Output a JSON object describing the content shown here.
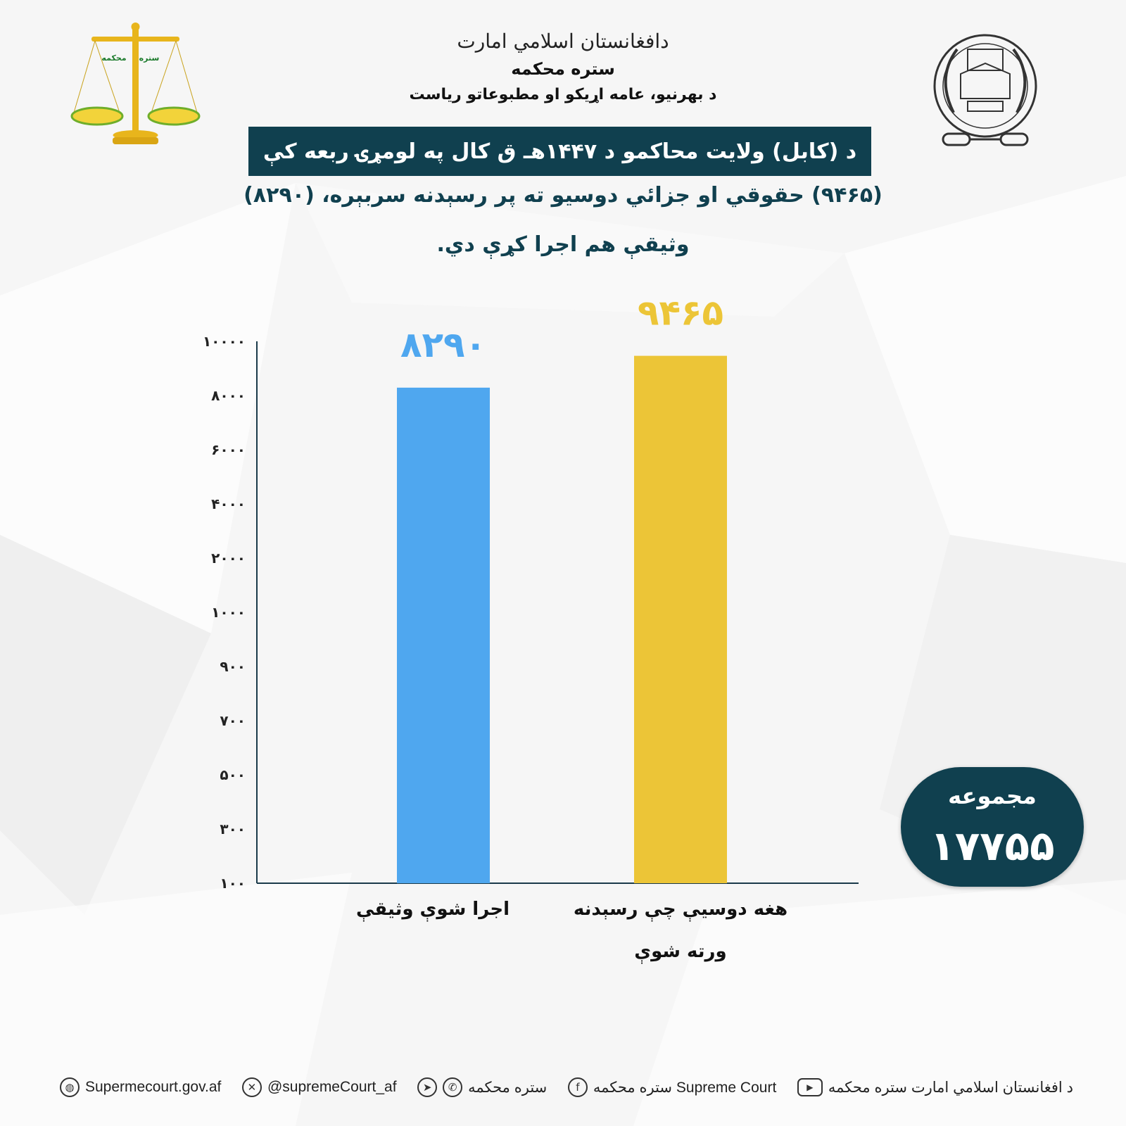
{
  "header": {
    "calligraphy": "دافغانستان اسلامي امارت",
    "court": "ستره محکمه",
    "department": "د بهرنیو، عامه اړیکو او مطبوعاتو ریاست"
  },
  "title": "د (کابل) ولایت محاکمو د ۱۴۴۷هـ ق کال په لومړۍ ربعه کې",
  "subtitle_line1": "(۹۴۶۵) حقوقي او جزائي دوسیو ته پر رسېدنه سربېره، (۸۲۹۰)",
  "subtitle_line2": "وثیقې هم اجرا کړې دي.",
  "logos": {
    "scale_label_left": "محکمه",
    "scale_label_right": "ستره"
  },
  "colors": {
    "band": "#10404f",
    "bar_blue": "#4fa7ef",
    "bar_yellow": "#ecc537",
    "axis": "#1a3a4a"
  },
  "chart_data": {
    "type": "bar",
    "categories": [
      "اجرا شوې وثیقې",
      "هغه دوسیې چې رسېدنه ورته شوې"
    ],
    "values": [
      8290,
      9465
    ],
    "value_labels": [
      "۸۲۹۰",
      "۹۴۶۵"
    ],
    "y_tick_labels": [
      "۱۰۰",
      "۳۰۰",
      "۵۰۰",
      "۷۰۰",
      "۹۰۰",
      "۱۰۰۰",
      "۲۰۰۰",
      "۴۰۰۰",
      "۶۰۰۰",
      "۸۰۰۰",
      "۱۰۰۰۰"
    ],
    "y_tick_values": [
      100,
      300,
      500,
      700,
      900,
      1000,
      2000,
      4000,
      6000,
      8000,
      10000
    ],
    "ylim": [
      100,
      10000
    ],
    "grid": false,
    "title": "",
    "xlabel": "",
    "ylabel": ""
  },
  "total": {
    "label": "مجموعه",
    "value": "۱۷۷۵۵"
  },
  "footer": {
    "website": "Supermecourt.gov.af",
    "twitter": "@supremeCourt_af",
    "messaging": "ستره محکمه",
    "facebook": "ستره محکمه Supreme Court",
    "youtube": "د افغانستان اسلامي امارت ستره محکمه"
  }
}
